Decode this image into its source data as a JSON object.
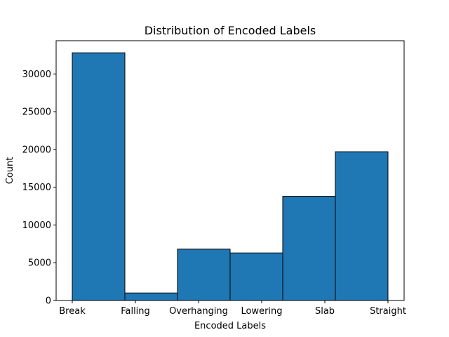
{
  "chart_data": {
    "type": "bar",
    "title": "Distribution of Encoded Labels",
    "xlabel": "Encoded Labels",
    "ylabel": "Count",
    "categories": [
      "Break",
      "Falling",
      "Overhanging",
      "Lowering",
      "Slab",
      "Straight"
    ],
    "x_tick_labels": [
      "Break",
      "Falling",
      "Overhanging",
      "Lowering",
      "Slab",
      "Straight"
    ],
    "values": [
      32800,
      1000,
      6800,
      6300,
      13800,
      19700
    ],
    "ylim": [
      0,
      34400
    ],
    "yticks": [
      0,
      5000,
      10000,
      15000,
      20000,
      25000,
      30000
    ],
    "ytick_labels": [
      "0",
      "5000",
      "10000",
      "15000",
      "20000",
      "25000",
      "30000"
    ],
    "grid": false,
    "legend": "none",
    "bar_color": "#1f77b4",
    "edge_color": "#000000"
  }
}
